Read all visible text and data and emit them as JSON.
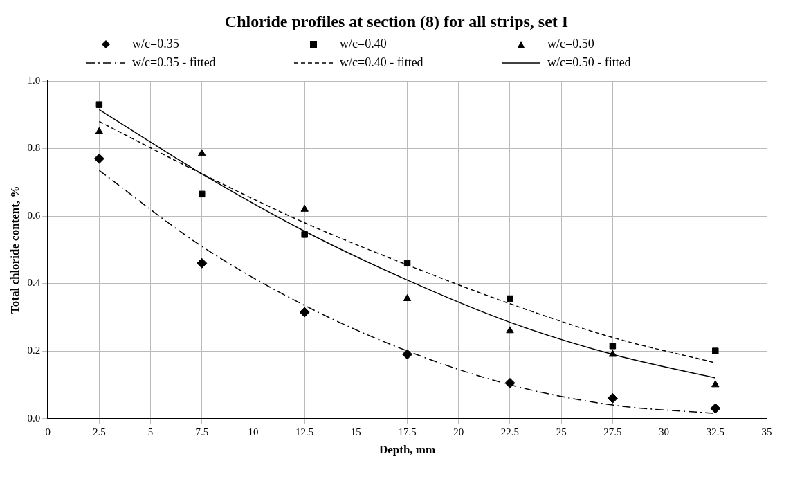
{
  "chart_data": {
    "type": "scatter",
    "title": "Chloride profiles at section (8) for all strips, set I",
    "xlabel": "Depth, mm",
    "ylabel": "Total chloride content, %",
    "series": [
      {
        "name": "w/c=0.35",
        "type": "scatter",
        "marker": "diamond",
        "color": "#000000",
        "x": [
          2.5,
          7.5,
          12.5,
          17.5,
          22.5,
          27.5,
          32.5
        ],
        "values": [
          0.77,
          0.46,
          0.315,
          0.19,
          0.105,
          0.06,
          0.03
        ]
      },
      {
        "name": "w/c=0.40",
        "type": "scatter",
        "marker": "square",
        "color": "#000000",
        "x": [
          2.5,
          7.5,
          12.5,
          17.5,
          22.5,
          27.5,
          32.5
        ],
        "values": [
          0.93,
          0.665,
          0.545,
          0.46,
          0.355,
          0.215,
          0.2
        ]
      },
      {
        "name": "w/c=0.50",
        "type": "scatter",
        "marker": "triangle",
        "color": "#000000",
        "x": [
          2.5,
          7.5,
          12.5,
          17.5,
          22.5,
          27.5,
          32.5
        ],
        "values": [
          0.85,
          0.785,
          0.62,
          0.355,
          0.26,
          0.19,
          0.1
        ]
      },
      {
        "name": "w/c=0.35 - fitted",
        "type": "line",
        "line_style": "dashdot",
        "color": "#000000",
        "x": [
          2.5,
          7.5,
          12.5,
          17.5,
          22.5,
          27.5,
          32.5
        ],
        "values": [
          0.735,
          0.51,
          0.335,
          0.2,
          0.1,
          0.04,
          0.015
        ]
      },
      {
        "name": "w/c=0.40 - fitted",
        "type": "line",
        "line_style": "dashed",
        "color": "#000000",
        "x": [
          2.5,
          7.5,
          12.5,
          17.5,
          22.5,
          27.5,
          32.5
        ],
        "values": [
          0.88,
          0.725,
          0.58,
          0.455,
          0.34,
          0.24,
          0.165
        ]
      },
      {
        "name": "w/c=0.50 - fitted",
        "type": "line",
        "line_style": "solid",
        "color": "#000000",
        "x": [
          2.5,
          7.5,
          12.5,
          17.5,
          22.5,
          27.5,
          32.5
        ],
        "values": [
          0.915,
          0.725,
          0.555,
          0.41,
          0.285,
          0.19,
          0.12
        ]
      }
    ],
    "xlim": [
      0,
      35
    ],
    "xticks": [
      0,
      2.5,
      5,
      7.5,
      10,
      12.5,
      15,
      17.5,
      20,
      22.5,
      25,
      27.5,
      30,
      32.5,
      35
    ],
    "ylim": [
      0,
      1
    ],
    "yticks": [
      {
        "value": 0,
        "label": "0.0"
      },
      0.2,
      0.4,
      0.6,
      0.8,
      {
        "value": 1,
        "label": "1.0"
      }
    ],
    "grid": true,
    "legend": "top"
  }
}
